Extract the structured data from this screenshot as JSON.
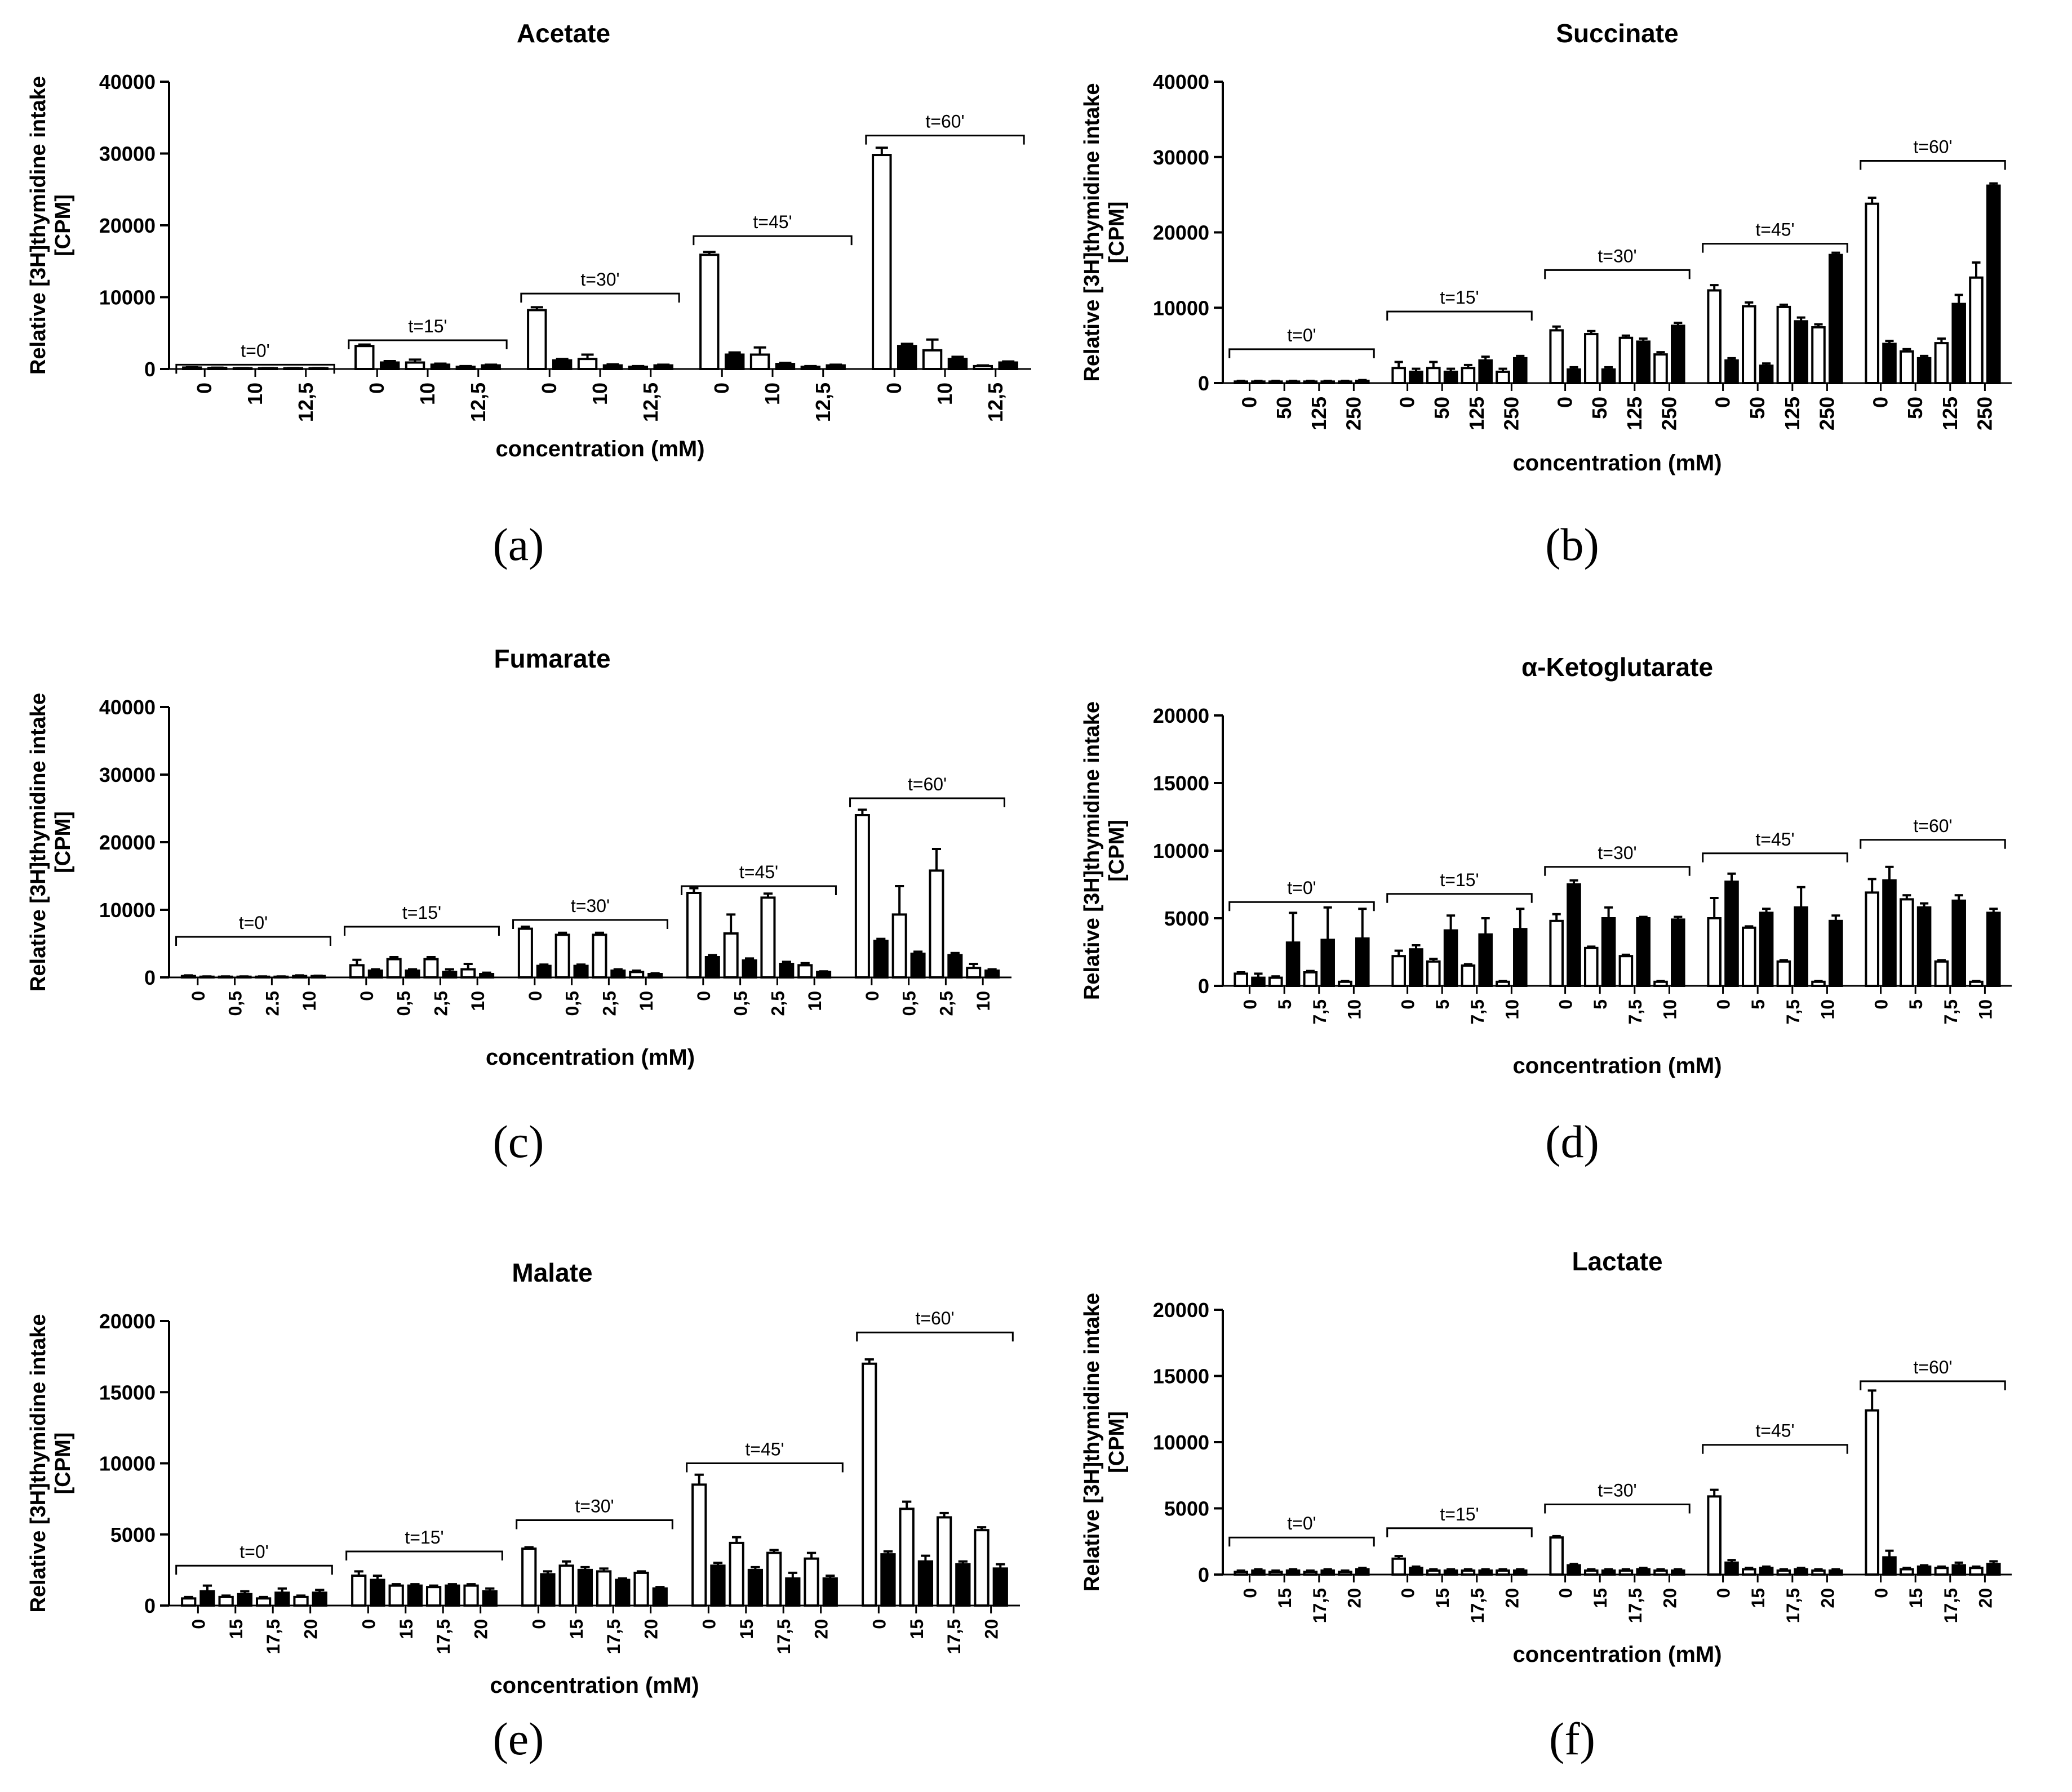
{
  "figure": {
    "labels": [
      "(a)",
      "(b)",
      "(c)",
      "(d)",
      "(e)",
      "(f)"
    ]
  },
  "colors": {
    "bar_open": "#ffffff",
    "bar_filled": "#000000",
    "ink": "#000000"
  },
  "chart_data": [
    {
      "type": "bar",
      "title": "Acetate",
      "ylabel_line1": "Relative [3H]thymidine intake",
      "ylabel_line2": "[CPM]",
      "xlabel": "concentration (mM)",
      "ylim": [
        0,
        40000
      ],
      "yticks": [
        0,
        10000,
        20000,
        30000,
        40000
      ],
      "group_labels": [
        "t=0'",
        "t=15'",
        "t=30'",
        "t=45'",
        "t=60'"
      ],
      "tick_labels": [
        "0",
        "10",
        "12,5"
      ],
      "bars_per_group": 6,
      "tick_positions": [
        1,
        3,
        5
      ],
      "series_fill_pattern": [
        "open",
        "filled",
        "open",
        "filled",
        "open",
        "filled"
      ],
      "values": [
        [
          200,
          150,
          100,
          100,
          100,
          100
        ],
        [
          3200,
          900,
          900,
          600,
          300,
          500
        ],
        [
          8200,
          1200,
          1400,
          500,
          300,
          500
        ],
        [
          15900,
          2000,
          2000,
          700,
          300,
          500
        ],
        [
          29800,
          3200,
          2600,
          1400,
          400,
          900
        ]
      ],
      "errors": [
        [
          50,
          40,
          30,
          30,
          30,
          30
        ],
        [
          200,
          200,
          400,
          150,
          100,
          100
        ],
        [
          400,
          200,
          600,
          150,
          100,
          100
        ],
        [
          400,
          300,
          1000,
          150,
          100,
          100
        ],
        [
          1000,
          300,
          1500,
          300,
          100,
          150
        ]
      ]
    },
    {
      "type": "bar",
      "title": "Succinate",
      "ylabel_line1": "Relative [3H]thymidine intake",
      "ylabel_line2": "[CPM]",
      "xlabel": "concentration (mM)",
      "ylim": [
        0,
        40000
      ],
      "yticks": [
        0,
        10000,
        20000,
        30000,
        40000
      ],
      "group_labels": [
        "t=0'",
        "t=15'",
        "t=30'",
        "t=45'",
        "t=60'"
      ],
      "tick_labels": [
        "0",
        "50",
        "125",
        "250"
      ],
      "bars_per_group": 8,
      "tick_positions": [
        1,
        3,
        5,
        7
      ],
      "series_fill_pattern": [
        "open",
        "filled",
        "open",
        "filled",
        "open",
        "filled",
        "open",
        "filled"
      ],
      "values": [
        [
          200,
          200,
          200,
          200,
          200,
          200,
          200,
          300
        ],
        [
          2000,
          1500,
          2000,
          1500,
          2000,
          3000,
          1500,
          3300
        ],
        [
          7000,
          1800,
          6500,
          1800,
          6000,
          5500,
          3800,
          7600
        ],
        [
          12300,
          3000,
          10200,
          2300,
          10100,
          8200,
          7400,
          17000
        ],
        [
          23800,
          5200,
          4200,
          3300,
          5300,
          10500,
          14000,
          26200
        ]
      ],
      "errors": [
        [
          100,
          100,
          100,
          100,
          100,
          100,
          100,
          100
        ],
        [
          800,
          400,
          800,
          400,
          400,
          500,
          400,
          300
        ],
        [
          500,
          300,
          400,
          300,
          300,
          400,
          300,
          400
        ],
        [
          700,
          300,
          500,
          300,
          300,
          500,
          400,
          300
        ],
        [
          800,
          400,
          300,
          300,
          600,
          1200,
          2000,
          300
        ]
      ]
    },
    {
      "type": "bar",
      "title": "Fumarate",
      "ylabel_line1": "Relative [3H]thymidine intake",
      "ylabel_line2": "[CPM]",
      "xlabel": "concentration (mM)",
      "ylim": [
        0,
        40000
      ],
      "yticks": [
        0,
        10000,
        20000,
        30000,
        40000
      ],
      "group_labels": [
        "t=0'",
        "t=15'",
        "t=30'",
        "t=45'",
        "t=60'"
      ],
      "tick_labels_by_group": [
        [
          "0",
          "0,5",
          "2.5",
          "10"
        ],
        [
          "0",
          "0,5",
          "2,5",
          "10"
        ],
        [
          "0",
          "0,5",
          "2,5",
          "10"
        ],
        [
          "0",
          "0,5",
          "2,5",
          "10"
        ],
        [
          "0",
          "0,5",
          "2,5",
          "10"
        ]
      ],
      "bars_per_group": 8,
      "tick_positions": [
        1,
        3,
        5,
        7
      ],
      "series_fill_pattern": [
        "open",
        "filled",
        "open",
        "filled",
        "open",
        "filled",
        "open",
        "filled"
      ],
      "values": [
        [
          200,
          100,
          100,
          100,
          100,
          100,
          200,
          200
        ],
        [
          1800,
          1000,
          2700,
          1000,
          2700,
          800,
          1200,
          500
        ],
        [
          7200,
          1700,
          6300,
          1700,
          6300,
          1000,
          800,
          500
        ],
        [
          12500,
          3000,
          6500,
          2500,
          11800,
          2000,
          1800,
          800
        ],
        [
          24000,
          5400,
          9300,
          3500,
          15800,
          3300,
          1400,
          1000
        ]
      ],
      "errors": [
        [
          100,
          50,
          50,
          50,
          50,
          50,
          100,
          50
        ],
        [
          800,
          200,
          300,
          200,
          300,
          400,
          800,
          200
        ],
        [
          300,
          200,
          300,
          200,
          300,
          200,
          200,
          100
        ],
        [
          700,
          300,
          2800,
          300,
          600,
          300,
          300,
          100
        ],
        [
          800,
          300,
          4200,
          300,
          3200,
          300,
          600,
          200
        ]
      ]
    },
    {
      "type": "bar",
      "title": "α-Ketoglutarate",
      "ylabel_line1": "Relative [3H]thymidine intake",
      "ylabel_line2": "[CPM]",
      "xlabel": "concentration (mM)",
      "ylim": [
        0,
        20000
      ],
      "yticks": [
        0,
        5000,
        10000,
        15000,
        20000
      ],
      "group_labels": [
        "t=0'",
        "t=15'",
        "t=30'",
        "t=45'",
        "t=60'"
      ],
      "tick_labels": [
        "0",
        "5",
        "7,5",
        "10"
      ],
      "bars_per_group": 8,
      "tick_positions": [
        1,
        3,
        5,
        7
      ],
      "series_fill_pattern": [
        "open",
        "filled",
        "open",
        "filled",
        "open",
        "filled",
        "open",
        "filled"
      ],
      "values": [
        [
          900,
          600,
          600,
          3200,
          1000,
          3400,
          300,
          3500
        ],
        [
          2200,
          2700,
          1800,
          4100,
          1500,
          3800,
          300,
          4200
        ],
        [
          4800,
          7500,
          2800,
          5000,
          2200,
          5000,
          300,
          4900
        ],
        [
          5000,
          7700,
          4300,
          5400,
          1800,
          5800,
          300,
          4800
        ],
        [
          6900,
          7800,
          6400,
          5800,
          1800,
          6300,
          300,
          5400
        ]
      ],
      "errors": [
        [
          100,
          300,
          100,
          2200,
          100,
          2400,
          50,
          2200
        ],
        [
          400,
          300,
          200,
          1100,
          100,
          1200,
          50,
          1500
        ],
        [
          500,
          300,
          100,
          800,
          100,
          100,
          50,
          200
        ],
        [
          1500,
          600,
          100,
          300,
          100,
          1500,
          50,
          400
        ],
        [
          1000,
          1000,
          300,
          300,
          100,
          400,
          50,
          300
        ]
      ]
    },
    {
      "type": "bar",
      "title": "Malate",
      "ylabel_line1": "Relative [3H]thymidine intake",
      "ylabel_line2": "[CPM]",
      "xlabel": "concentration (mM)",
      "ylim": [
        0,
        20000
      ],
      "yticks": [
        0,
        5000,
        10000,
        15000,
        20000
      ],
      "group_labels": [
        "t=0'",
        "t=15'",
        "t=30'",
        "t=45'",
        "t=60'"
      ],
      "tick_labels": [
        "0",
        "15",
        "17,5",
        "20"
      ],
      "bars_per_group": 8,
      "tick_positions": [
        1,
        3,
        5,
        7
      ],
      "series_fill_pattern": [
        "open",
        "filled",
        "open",
        "filled",
        "open",
        "filled",
        "open",
        "filled"
      ],
      "values": [
        [
          500,
          1000,
          600,
          800,
          500,
          900,
          600,
          900
        ],
        [
          2100,
          1800,
          1400,
          1400,
          1300,
          1400,
          1400,
          1000
        ],
        [
          4000,
          2200,
          2800,
          2500,
          2400,
          1800,
          2300,
          1200
        ],
        [
          8500,
          2800,
          4400,
          2500,
          3700,
          1900,
          3300,
          1900
        ],
        [
          17000,
          3600,
          6800,
          3100,
          6200,
          2900,
          5300,
          2600
        ]
      ],
      "errors": [
        [
          100,
          400,
          100,
          200,
          100,
          300,
          100,
          200
        ],
        [
          300,
          300,
          100,
          100,
          100,
          100,
          100,
          200
        ],
        [
          100,
          200,
          300,
          200,
          200,
          100,
          100,
          100
        ],
        [
          700,
          200,
          400,
          200,
          200,
          400,
          400,
          200
        ],
        [
          300,
          200,
          500,
          400,
          300,
          200,
          200,
          300
        ]
      ]
    },
    {
      "type": "bar",
      "title": "Lactate",
      "ylabel_line1": "Relative [3H]thymidine intake",
      "ylabel_line2": "[CPM]",
      "xlabel": "concentration (mM)",
      "ylim": [
        0,
        20000
      ],
      "yticks": [
        0,
        5000,
        10000,
        15000,
        20000
      ],
      "group_labels": [
        "t=0'",
        "t=15'",
        "t=30'",
        "t=45'",
        "t=60'"
      ],
      "tick_labels": [
        "0",
        "15",
        "17,5",
        "20"
      ],
      "bars_per_group": 8,
      "tick_positions": [
        1,
        3,
        5,
        7
      ],
      "series_fill_pattern": [
        "open",
        "filled",
        "open",
        "filled",
        "open",
        "filled",
        "open",
        "filled"
      ],
      "values": [
        [
          200,
          300,
          200,
          300,
          200,
          300,
          200,
          400
        ],
        [
          1200,
          500,
          300,
          300,
          300,
          300,
          300,
          300
        ],
        [
          2800,
          700,
          300,
          300,
          300,
          400,
          300,
          300
        ],
        [
          5900,
          900,
          400,
          500,
          300,
          400,
          300,
          300
        ],
        [
          12400,
          1300,
          400,
          600,
          500,
          700,
          500,
          800
        ]
      ],
      "errors": [
        [
          100,
          100,
          100,
          100,
          100,
          100,
          100,
          100
        ],
        [
          200,
          100,
          100,
          100,
          100,
          100,
          100,
          100
        ],
        [
          100,
          100,
          100,
          100,
          100,
          100,
          100,
          100
        ],
        [
          500,
          200,
          100,
          100,
          100,
          100,
          100,
          100
        ],
        [
          1500,
          500,
          100,
          100,
          100,
          200,
          100,
          200
        ]
      ]
    }
  ]
}
